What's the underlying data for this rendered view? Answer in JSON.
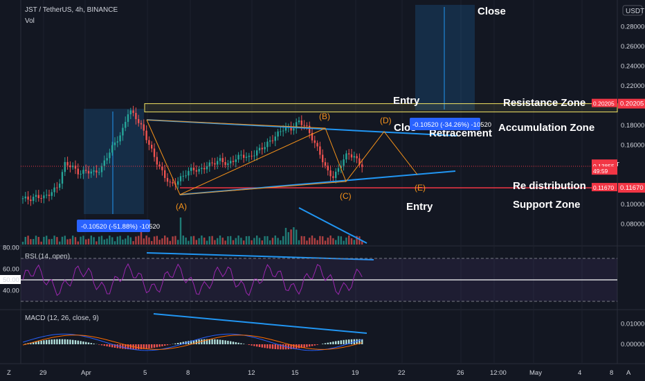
{
  "header": {
    "symbol_line": "JST / TetherUS, 4h, BINANCE",
    "vol_label": "Vol",
    "currency_badge": "USDT"
  },
  "price_axis": {
    "ticks": [
      "0.28000",
      "0.26000",
      "0.24000",
      "0.22000",
      "0.18000",
      "0.16000",
      "0.10000",
      "0.08000"
    ],
    "tick_values": [
      0.28,
      0.26,
      0.24,
      0.22,
      0.18,
      0.16,
      0.1,
      0.08
    ],
    "tags": [
      {
        "text": "0.20205",
        "value": 0.20205,
        "color": "#f23645"
      },
      {
        "text": "JSTUSDT",
        "value": 0.1405,
        "color": "#f23645"
      },
      {
        "text": "0.13855",
        "value": 0.13855,
        "color": "#f23645"
      },
      {
        "text": "49:59",
        "value": 0.1335,
        "color": "#f23645"
      },
      {
        "text": "0.11670",
        "value": 0.1167,
        "color": "#f23645"
      }
    ]
  },
  "time_axis": {
    "labels": [
      "29",
      "Apr",
      "5",
      "8",
      "12",
      "15",
      "19",
      "22",
      "26",
      "12:00",
      "May",
      "4",
      "8"
    ]
  },
  "annotations": {
    "close_top": "Close",
    "entry_top": "Entry",
    "resistance_zone": "Resistance Zone",
    "close_mid": "Clos",
    "retracement": "Retracement",
    "accumulation_zone": "Accumulation Zone",
    "re_distribution": "Re distribution",
    "entry_bottom": "Entry",
    "support_zone": "Support Zone",
    "measure_left": "-0.10520 (-51.88%) -10520",
    "measure_right": "-0.10520 (-34.26%) -10520"
  },
  "elliott_labels": [
    "(A)",
    "(B)",
    "(C)",
    "(D)",
    "(E)"
  ],
  "rsi": {
    "title": "RSI (14, open)",
    "ticks": [
      "80.00",
      "60.00",
      "50.00",
      "40.00"
    ],
    "tick_values": [
      80,
      60,
      50,
      40
    ]
  },
  "macd": {
    "title": "MACD (12, 26, close, 9)",
    "ticks": [
      "0.01000",
      "0.00000"
    ],
    "tick_values": [
      0.01,
      0.0
    ]
  },
  "colors": {
    "background": "#131722",
    "up": "#26a69a",
    "down": "#ef5350",
    "trendline": "#2196f3",
    "resistance": "#f5e663",
    "support": "#f23645",
    "elliott": "#f7931a",
    "rsi_line": "#9c27b0"
  },
  "chart_data": {
    "type": "candlestick",
    "price_levels": {
      "resistance": 0.20205,
      "support": 0.1167,
      "last_price": 0.13855
    },
    "elliott_wave_points": [
      {
        "label": "(A)",
        "price": 0.1167
      },
      {
        "label": "(B)",
        "price": 0.184
      },
      {
        "label": "(C)",
        "price": 0.1255
      },
      {
        "label": "(D)",
        "price": 0.183
      },
      {
        "label": "(E)",
        "price": 0.139
      }
    ],
    "price_path": [
      0.106,
      0.105,
      0.108,
      0.107,
      0.112,
      0.118,
      0.142,
      0.138,
      0.131,
      0.134,
      0.132,
      0.135,
      0.15,
      0.162,
      0.172,
      0.196,
      0.188,
      0.176,
      0.158,
      0.142,
      0.129,
      0.119,
      0.124,
      0.131,
      0.136,
      0.134,
      0.139,
      0.142,
      0.145,
      0.14,
      0.146,
      0.15,
      0.147,
      0.153,
      0.158,
      0.164,
      0.171,
      0.178,
      0.176,
      0.184,
      0.18,
      0.166,
      0.152,
      0.134,
      0.127,
      0.141,
      0.152,
      0.147,
      0.139
    ]
  }
}
